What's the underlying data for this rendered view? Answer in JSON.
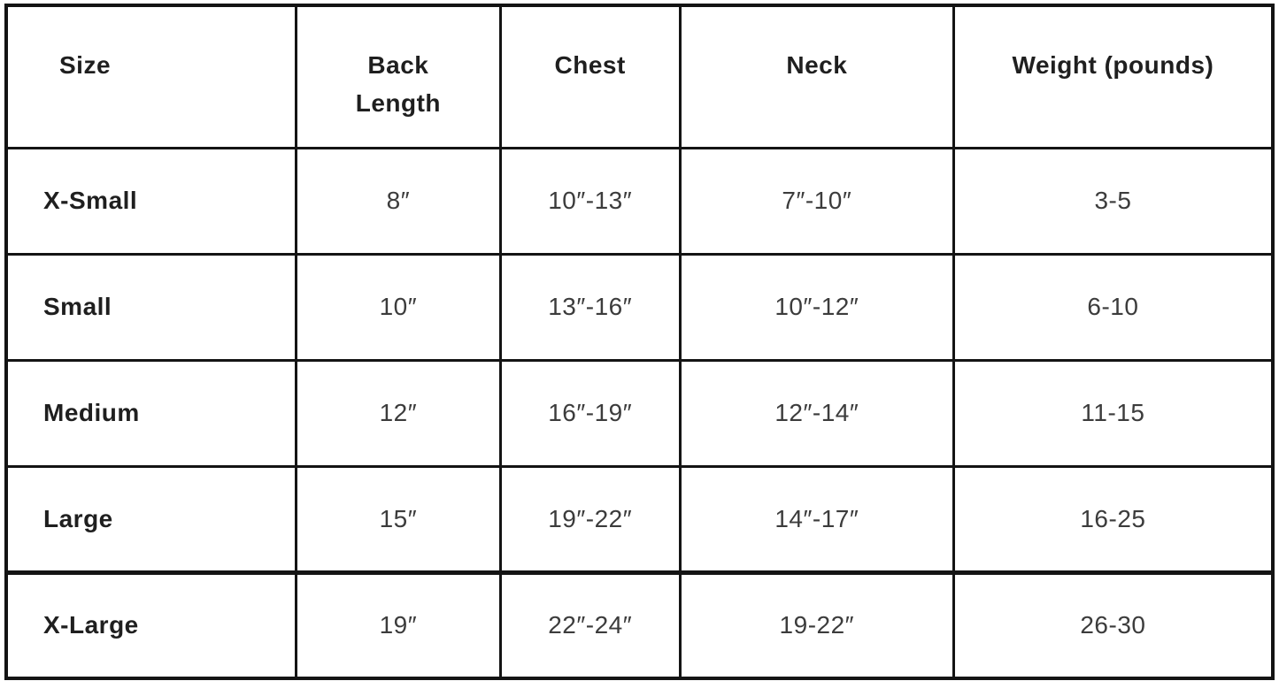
{
  "table": {
    "columns": [
      {
        "label": "Size"
      },
      {
        "label": "Back Length"
      },
      {
        "label": "Chest"
      },
      {
        "label": "Neck"
      },
      {
        "label": "Weight (pounds)"
      }
    ],
    "rows": [
      {
        "size": "X-Small",
        "back_length": "8″",
        "chest": "10″-13″",
        "neck": "7″-10″",
        "weight": "3-5"
      },
      {
        "size": "Small",
        "back_length": "10″",
        "chest": "13″-16″",
        "neck": "10″-12″",
        "weight": "6-10"
      },
      {
        "size": "Medium",
        "back_length": "12″",
        "chest": "16″-19″",
        "neck": "12″-14″",
        "weight": "11-15"
      },
      {
        "size": "Large",
        "back_length": "15″",
        "chest": "19″-22″",
        "neck": "14″-17″",
        "weight": "16-25"
      },
      {
        "size": "X-Large",
        "back_length": "19″",
        "chest": "22″-24″",
        "neck": "19-22″",
        "weight": "26-30"
      }
    ]
  }
}
